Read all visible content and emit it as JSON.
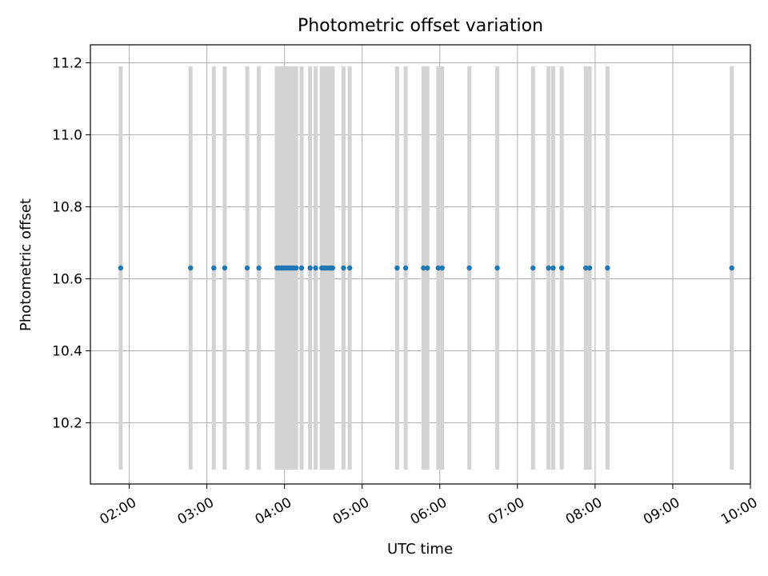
{
  "chart_data": {
    "type": "scatter",
    "title": "Photometric offset variation",
    "xlabel": "UTC time",
    "ylabel": "Photometric offset",
    "x_axis": {
      "min_hours": 1.5,
      "max_hours": 10.0,
      "ticks": [
        {
          "hours": 2,
          "label": "02:00"
        },
        {
          "hours": 3,
          "label": "03:00"
        },
        {
          "hours": 4,
          "label": "04:00"
        },
        {
          "hours": 5,
          "label": "05:00"
        },
        {
          "hours": 6,
          "label": "06:00"
        },
        {
          "hours": 7,
          "label": "07:00"
        },
        {
          "hours": 8,
          "label": "08:00"
        },
        {
          "hours": 9,
          "label": "09:00"
        },
        {
          "hours": 10,
          "label": "10:00"
        }
      ]
    },
    "y_axis": {
      "ylim": [
        10.03,
        11.25
      ],
      "ticks": [
        {
          "value": 10.2,
          "label": "10.2"
        },
        {
          "value": 10.4,
          "label": "10.4"
        },
        {
          "value": 10.6,
          "label": "10.6"
        },
        {
          "value": 10.8,
          "label": "10.8"
        },
        {
          "value": 11.0,
          "label": "11.0"
        },
        {
          "value": 11.2,
          "label": "11.2"
        }
      ]
    },
    "grid": true,
    "points": {
      "color": "#1f77b4",
      "y": 10.63,
      "error_low": 10.07,
      "error_high": 11.19,
      "error_color": "#d3d3d3",
      "x_hours": [
        1.89,
        2.79,
        3.09,
        3.23,
        3.52,
        3.67,
        3.9,
        3.93,
        3.96,
        3.98,
        4.0,
        4.02,
        4.04,
        4.06,
        4.08,
        4.1,
        4.12,
        4.15,
        4.22,
        4.33,
        4.4,
        4.48,
        4.51,
        4.54,
        4.57,
        4.6,
        4.62,
        4.76,
        4.84,
        5.45,
        5.56,
        5.79,
        5.84,
        5.98,
        6.03,
        6.38,
        6.74,
        7.2,
        7.4,
        7.46,
        7.57,
        7.88,
        7.93,
        8.16,
        9.76
      ]
    }
  }
}
